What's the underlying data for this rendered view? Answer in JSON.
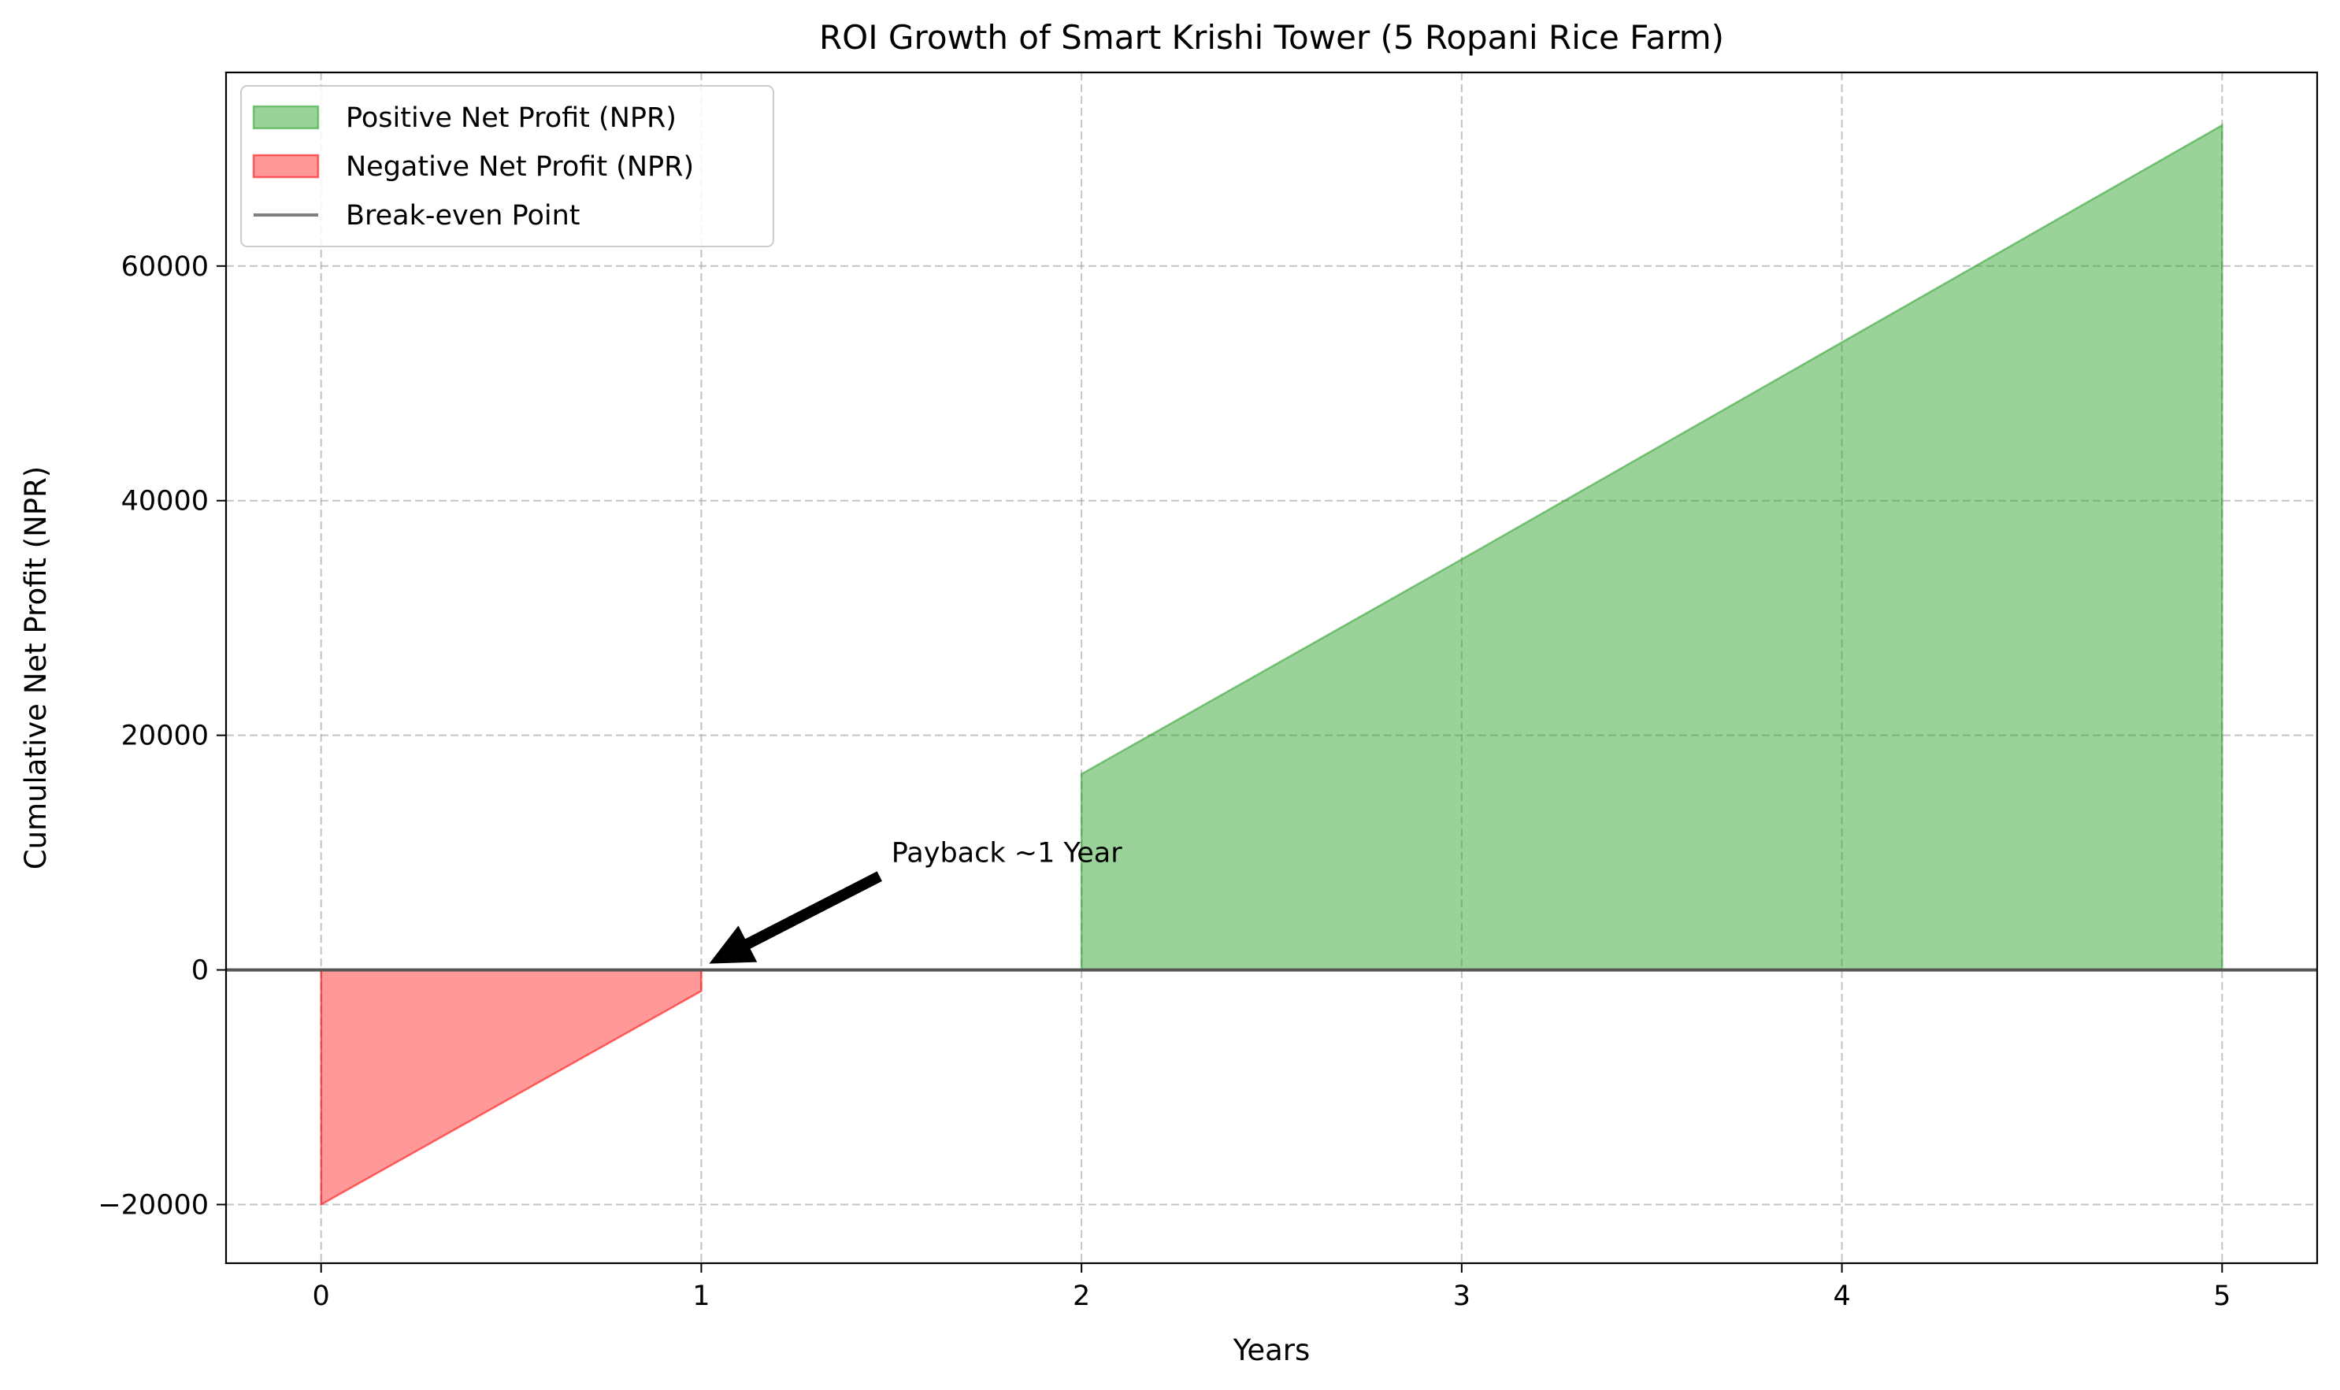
{
  "chart_data": {
    "type": "area",
    "title": "ROI Growth of Smart Krishi Tower (5 Ropani Rice Farm)",
    "xlabel": "Years",
    "ylabel": "Cumulative Net Profit (NPR)",
    "xlim": [
      -0.25,
      5.25
    ],
    "ylim": [
      -25000,
      76500
    ],
    "xticks": [
      0,
      1,
      2,
      3,
      4,
      5
    ],
    "xtick_labels": [
      "0",
      "1",
      "2",
      "3",
      "4",
      "5"
    ],
    "yticks": [
      -20000,
      0,
      20000,
      40000,
      60000
    ],
    "ytick_labels": [
      "−20000",
      "0",
      "20000",
      "40000",
      "60000"
    ],
    "grid": true,
    "legend_position": "upper-left",
    "x": [
      0,
      1,
      2,
      3,
      4,
      5
    ],
    "series": [
      {
        "name": "Cumulative Net Profit",
        "values": [
          -20000,
          -1800,
          16700,
          35000,
          53500,
          72000
        ],
        "show_in_legend": false
      }
    ],
    "fills": [
      {
        "name": "Positive Net Profit (NPR)",
        "where": "positive",
        "color": "#2ca02c",
        "alpha": 0.48,
        "x": [
          2,
          3,
          4,
          5
        ],
        "values": [
          16700,
          35000,
          53500,
          72000
        ]
      },
      {
        "name": "Negative Net Profit (NPR)",
        "where": "negative",
        "color": "#ff0000",
        "alpha": 0.4,
        "x": [
          0,
          1
        ],
        "values": [
          -20000,
          -1800
        ]
      }
    ],
    "reference_line": {
      "name": "Break-even Point",
      "y": 0,
      "color": "#808080"
    },
    "legend": [
      {
        "label": "Positive Net Profit (NPR)",
        "kind": "patch",
        "color": "#2ca02c"
      },
      {
        "label": "Negative Net Profit (NPR)",
        "kind": "patch",
        "color": "#ff0000"
      },
      {
        "label": "Break-even Point",
        "kind": "line",
        "color": "#808080"
      }
    ],
    "annotation": {
      "text": "Payback ~1 Year",
      "xy": [
        1,
        0
      ],
      "xytext": [
        1.5,
        10000
      ]
    }
  }
}
